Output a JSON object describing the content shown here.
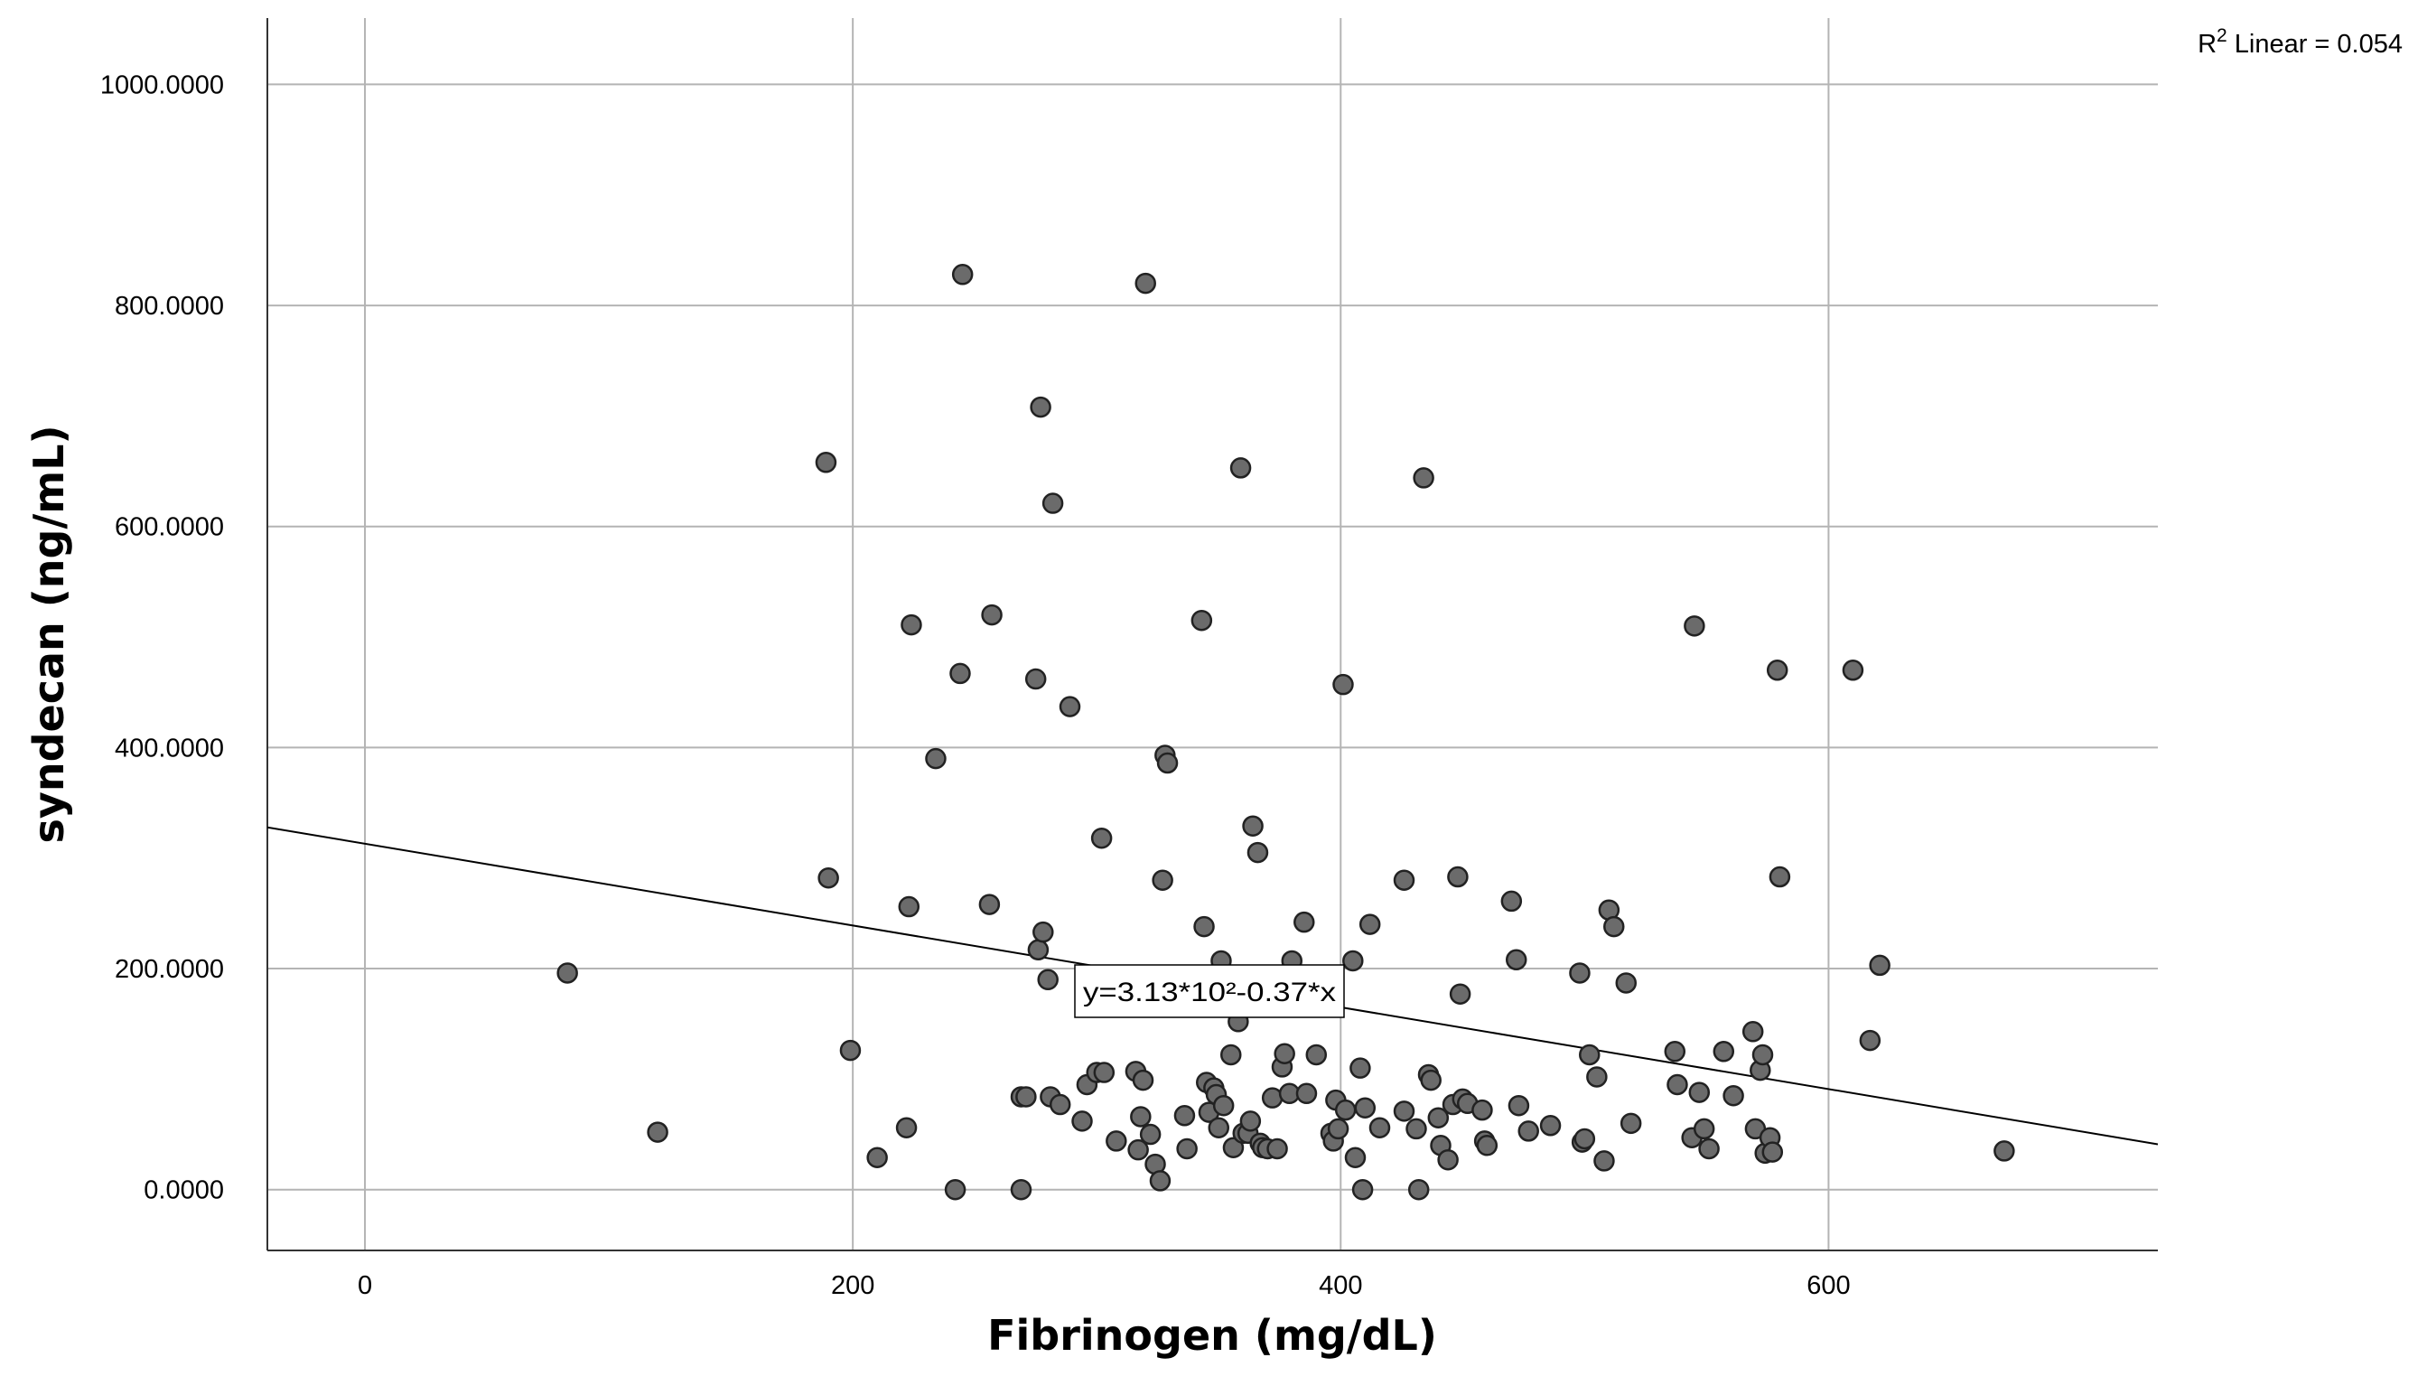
{
  "chart_data": {
    "type": "scatter",
    "title": "",
    "xlabel": "Fibrinogen (mg/dL)",
    "ylabel": "syndecan (ng/mL)",
    "xlim": [
      -40,
      735
    ],
    "ylim": [
      -55,
      1060
    ],
    "x_ticks": [
      0,
      200,
      400,
      600
    ],
    "x_tick_labels": [
      "0",
      "200",
      "400",
      "600"
    ],
    "y_ticks": [
      0,
      200,
      400,
      600,
      800,
      1000
    ],
    "y_tick_labels": [
      "0.0000",
      "200.0000",
      "400.0000",
      "600.0000",
      "800.0000",
      "1000.0000"
    ],
    "grid": true,
    "marker_color": "#6b6b6b",
    "marker_edge_color": "#222222",
    "fit_line": {
      "intercept": 313,
      "slope": -0.37,
      "color": "#000000"
    },
    "r_squared_label": {
      "prefix": "R",
      "superscript": "2",
      "text": " Linear = 0.054"
    },
    "equation_label": "y=3.13*10²-0.37*x",
    "x": [
      83,
      120,
      189,
      190,
      199,
      210,
      222,
      223,
      224,
      234,
      242,
      244,
      245,
      256,
      257,
      269,
      269,
      271,
      275,
      276,
      277,
      278,
      280,
      281,
      282,
      285,
      289,
      294,
      296,
      300,
      302,
      303,
      308,
      316,
      317,
      318,
      319,
      320,
      322,
      324,
      326,
      327,
      328,
      329,
      336,
      337,
      343,
      344,
      345,
      346,
      348,
      349,
      350,
      351,
      352,
      355,
      356,
      358,
      359,
      360,
      362,
      363,
      364,
      366,
      367,
      368,
      370,
      372,
      374,
      376,
      377,
      379,
      380,
      385,
      386,
      390,
      396,
      397,
      398,
      399,
      401,
      402,
      405,
      406,
      408,
      409,
      410,
      412,
      416,
      426,
      426,
      431,
      432,
      434,
      436,
      437,
      440,
      441,
      444,
      446,
      448,
      449,
      450,
      452,
      458,
      459,
      460,
      470,
      472,
      473,
      477,
      486,
      498,
      499,
      500,
      502,
      505,
      508,
      510,
      512,
      517,
      519,
      537,
      538,
      544,
      545,
      547,
      549,
      551,
      557,
      561,
      569,
      570,
      572,
      573,
      574,
      576,
      577,
      579,
      580,
      610,
      617,
      621,
      672
    ],
    "y": [
      196,
      52,
      658,
      282,
      126,
      29,
      56,
      256,
      511,
      390,
      0,
      467,
      828,
      258,
      520,
      0,
      84,
      84,
      462,
      217,
      708,
      233,
      190,
      84,
      621,
      77,
      437,
      62,
      95,
      106,
      318,
      106,
      44,
      107,
      36,
      66,
      99,
      820,
      50,
      23,
      8,
      280,
      393,
      386,
      67,
      37,
      515,
      238,
      97,
      70,
      92,
      86,
      56,
      207,
      76,
      122,
      38,
      152,
      653,
      51,
      51,
      62,
      329,
      305,
      42,
      38,
      37,
      83,
      37,
      111,
      123,
      87,
      207,
      242,
      87,
      122,
      51,
      44,
      81,
      55,
      457,
      72,
      207,
      29,
      110,
      0,
      74,
      240,
      56,
      280,
      71,
      55,
      0,
      644,
      104,
      99,
      65,
      40,
      27,
      77,
      283,
      177,
      82,
      78,
      72,
      44,
      40,
      261,
      208,
      76,
      53,
      58,
      196,
      43,
      46,
      122,
      102,
      26,
      253,
      238,
      187,
      60,
      125,
      95,
      47,
      510,
      88,
      55,
      37,
      125,
      85,
      143,
      55,
      108,
      122,
      33,
      47,
      34,
      470,
      283,
      470,
      135,
      203,
      35
    ]
  }
}
